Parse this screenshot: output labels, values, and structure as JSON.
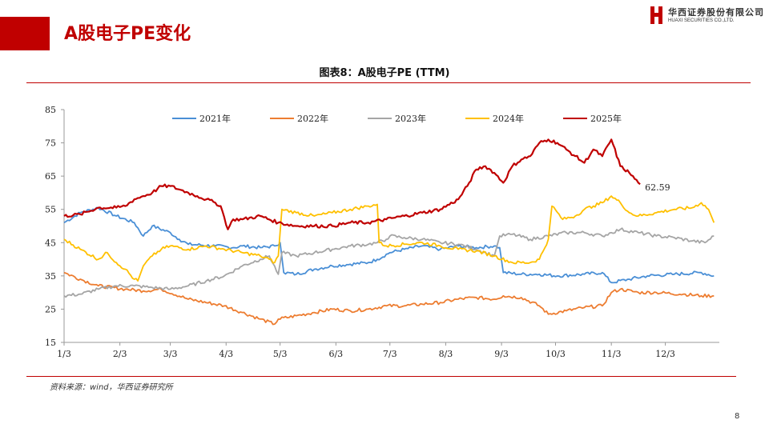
{
  "header": {
    "title": "A股电子PE变化"
  },
  "brand": {
    "name_cn": "华西证券股份有限公司",
    "name_en": "HUAXI SECURITIES CO.,LTD."
  },
  "footer": {
    "source": "资料来源：wind，华西证券研究所",
    "page": "8"
  },
  "colors": {
    "accent": "#c00000"
  },
  "chart_data": {
    "type": "line",
    "title": "图表8：A股电子PE (TTM)",
    "xlabel": "",
    "ylabel": "",
    "ylim": [
      15,
      85
    ],
    "yticks": [
      15,
      25,
      35,
      45,
      55,
      65,
      75,
      85
    ],
    "xlim": [
      1,
      365
    ],
    "x_ticks": [
      {
        "day": 1,
        "label": "1/3"
      },
      {
        "day": 32,
        "label": "2/3"
      },
      {
        "day": 60,
        "label": "3/3"
      },
      {
        "day": 91,
        "label": "4/3"
      },
      {
        "day": 121,
        "label": "5/3"
      },
      {
        "day": 152,
        "label": "6/3"
      },
      {
        "day": 182,
        "label": "7/3"
      },
      {
        "day": 213,
        "label": "8/3"
      },
      {
        "day": 244,
        "label": "9/3"
      },
      {
        "day": 274,
        "label": "10/3"
      },
      {
        "day": 305,
        "label": "11/3"
      },
      {
        "day": 335,
        "label": "12/3"
      }
    ],
    "grid": false,
    "legend": "top",
    "series": [
      {
        "name": "2021年",
        "color": "#4a8fd6",
        "points": [
          [
            1,
            51
          ],
          [
            10,
            54
          ],
          [
            20,
            55.5
          ],
          [
            30,
            53
          ],
          [
            40,
            51
          ],
          [
            45,
            47
          ],
          [
            50,
            50
          ],
          [
            60,
            48
          ],
          [
            65,
            46
          ],
          [
            70,
            44.5
          ],
          [
            85,
            44
          ],
          [
            95,
            43.5
          ],
          [
            100,
            44
          ],
          [
            110,
            43.5
          ],
          [
            118,
            44
          ],
          [
            121,
            45
          ],
          [
            123,
            36
          ],
          [
            130,
            35.5
          ],
          [
            140,
            37
          ],
          [
            150,
            38
          ],
          [
            160,
            38.5
          ],
          [
            170,
            39
          ],
          [
            175,
            40
          ],
          [
            182,
            42
          ],
          [
            190,
            43
          ],
          [
            200,
            44
          ],
          [
            210,
            43
          ],
          [
            220,
            44
          ],
          [
            230,
            43.5
          ],
          [
            240,
            44
          ],
          [
            243,
            43.5
          ],
          [
            245,
            36
          ],
          [
            255,
            35.5
          ],
          [
            265,
            35.5
          ],
          [
            275,
            35
          ],
          [
            290,
            35.5
          ],
          [
            300,
            36
          ],
          [
            305,
            33
          ],
          [
            315,
            34
          ],
          [
            325,
            35
          ],
          [
            340,
            35.5
          ],
          [
            355,
            36
          ],
          [
            362,
            35
          ]
        ]
      },
      {
        "name": "2022年",
        "color": "#ed7d31",
        "points": [
          [
            1,
            36
          ],
          [
            10,
            34
          ],
          [
            20,
            32
          ],
          [
            35,
            31
          ],
          [
            45,
            30.5
          ],
          [
            55,
            31
          ],
          [
            70,
            28
          ],
          [
            90,
            26
          ],
          [
            100,
            24
          ],
          [
            110,
            22
          ],
          [
            118,
            20.5
          ],
          [
            120,
            22
          ],
          [
            130,
            23
          ],
          [
            140,
            24
          ],
          [
            150,
            25
          ],
          [
            160,
            24.5
          ],
          [
            170,
            25
          ],
          [
            180,
            26
          ],
          [
            190,
            26
          ],
          [
            200,
            26.5
          ],
          [
            210,
            27
          ],
          [
            220,
            28
          ],
          [
            230,
            28.5
          ],
          [
            240,
            28
          ],
          [
            245,
            29
          ],
          [
            255,
            28.5
          ],
          [
            265,
            26
          ],
          [
            270,
            23.5
          ],
          [
            280,
            24.5
          ],
          [
            290,
            25.5
          ],
          [
            300,
            26
          ],
          [
            305,
            30
          ],
          [
            310,
            31
          ],
          [
            320,
            30
          ],
          [
            330,
            30
          ],
          [
            345,
            29.5
          ],
          [
            355,
            29
          ],
          [
            362,
            29
          ]
        ]
      },
      {
        "name": "2023年",
        "color": "#a5a5a5",
        "points": [
          [
            1,
            29
          ],
          [
            10,
            29.5
          ],
          [
            20,
            31
          ],
          [
            30,
            32
          ],
          [
            40,
            32
          ],
          [
            50,
            31.5
          ],
          [
            60,
            31
          ],
          [
            70,
            32
          ],
          [
            80,
            33.5
          ],
          [
            90,
            35
          ],
          [
            100,
            38
          ],
          [
            110,
            40
          ],
          [
            115,
            41
          ],
          [
            120,
            35.5
          ],
          [
            122,
            42
          ],
          [
            130,
            41
          ],
          [
            140,
            42
          ],
          [
            150,
            43
          ],
          [
            160,
            44
          ],
          [
            170,
            44.5
          ],
          [
            175,
            45
          ],
          [
            180,
            46
          ],
          [
            182,
            47
          ],
          [
            190,
            46.5
          ],
          [
            200,
            46
          ],
          [
            210,
            45
          ],
          [
            220,
            44.5
          ],
          [
            230,
            43
          ],
          [
            240,
            41
          ],
          [
            243,
            47
          ],
          [
            250,
            47.5
          ],
          [
            260,
            46
          ],
          [
            270,
            47
          ],
          [
            280,
            48
          ],
          [
            290,
            48
          ],
          [
            300,
            47
          ],
          [
            305,
            48
          ],
          [
            310,
            49
          ],
          [
            320,
            48
          ],
          [
            330,
            47
          ],
          [
            340,
            46.5
          ],
          [
            350,
            45.5
          ],
          [
            357,
            45
          ],
          [
            362,
            47
          ]
        ]
      },
      {
        "name": "2024年",
        "color": "#ffc000",
        "points": [
          [
            1,
            46
          ],
          [
            10,
            43
          ],
          [
            20,
            40
          ],
          [
            25,
            42
          ],
          [
            30,
            39
          ],
          [
            35,
            37
          ],
          [
            40,
            34
          ],
          [
            42,
            33.5
          ],
          [
            45,
            38
          ],
          [
            50,
            41
          ],
          [
            55,
            43
          ],
          [
            60,
            44
          ],
          [
            70,
            43
          ],
          [
            80,
            44
          ],
          [
            90,
            43
          ],
          [
            100,
            42
          ],
          [
            110,
            41
          ],
          [
            115,
            40
          ],
          [
            118,
            39
          ],
          [
            120,
            41
          ],
          [
            122,
            55
          ],
          [
            130,
            54
          ],
          [
            140,
            53
          ],
          [
            150,
            54
          ],
          [
            160,
            55
          ],
          [
            170,
            56
          ],
          [
            175,
            56.5
          ],
          [
            176,
            45
          ],
          [
            180,
            44
          ],
          [
            190,
            44.5
          ],
          [
            200,
            45
          ],
          [
            210,
            44
          ],
          [
            220,
            43
          ],
          [
            230,
            42.5
          ],
          [
            240,
            41
          ],
          [
            250,
            39
          ],
          [
            260,
            39
          ],
          [
            265,
            40
          ],
          [
            270,
            46
          ],
          [
            272,
            56
          ],
          [
            278,
            52
          ],
          [
            285,
            53
          ],
          [
            290,
            55
          ],
          [
            295,
            56
          ],
          [
            300,
            57
          ],
          [
            305,
            59
          ],
          [
            310,
            57
          ],
          [
            315,
            54
          ],
          [
            320,
            53
          ],
          [
            330,
            54
          ],
          [
            340,
            55
          ],
          [
            350,
            55.5
          ],
          [
            355,
            57
          ],
          [
            359,
            55
          ],
          [
            362,
            51
          ]
        ]
      },
      {
        "name": "2025年",
        "color": "#c00000",
        "points": [
          [
            1,
            53
          ],
          [
            10,
            53.5
          ],
          [
            20,
            55.5
          ],
          [
            30,
            55.5
          ],
          [
            35,
            56
          ],
          [
            40,
            58
          ],
          [
            45,
            59
          ],
          [
            50,
            60
          ],
          [
            55,
            62
          ],
          [
            60,
            62
          ],
          [
            65,
            61
          ],
          [
            70,
            60
          ],
          [
            75,
            59
          ],
          [
            80,
            58
          ],
          [
            85,
            57
          ],
          [
            88,
            56
          ],
          [
            92,
            49
          ],
          [
            95,
            52
          ],
          [
            100,
            52
          ],
          [
            110,
            53
          ],
          [
            120,
            51
          ],
          [
            130,
            50
          ],
          [
            140,
            50
          ],
          [
            150,
            50
          ],
          [
            160,
            51
          ],
          [
            170,
            51
          ],
          [
            180,
            52
          ],
          [
            190,
            53
          ],
          [
            200,
            54
          ],
          [
            210,
            55
          ],
          [
            220,
            58
          ],
          [
            225,
            62
          ],
          [
            230,
            67
          ],
          [
            235,
            68
          ],
          [
            240,
            66
          ],
          [
            245,
            63
          ],
          [
            250,
            68
          ],
          [
            255,
            70
          ],
          [
            260,
            71
          ],
          [
            265,
            75
          ],
          [
            270,
            76
          ],
          [
            275,
            75
          ],
          [
            280,
            73
          ],
          [
            285,
            71
          ],
          [
            290,
            69
          ],
          [
            295,
            73
          ],
          [
            300,
            71
          ],
          [
            305,
            76
          ],
          [
            310,
            68
          ],
          [
            315,
            66
          ],
          [
            320,
            63
          ],
          [
            321,
            62.59
          ]
        ]
      }
    ],
    "annotation": {
      "text": "62.59",
      "x": 321,
      "y": 62.59
    }
  }
}
